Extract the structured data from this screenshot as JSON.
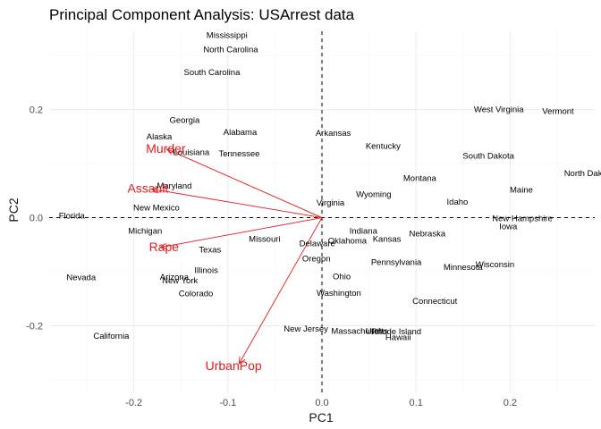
{
  "chart_data": {
    "type": "scatter",
    "title": "Principal Component Analysis: USArrest data",
    "xlabel": "PC1",
    "ylabel": "PC2",
    "xlim": [
      -0.29,
      0.29
    ],
    "ylim": [
      -0.325,
      0.345
    ],
    "xticks": [
      -0.2,
      -0.1,
      0.0,
      0.1,
      0.2
    ],
    "yticks": [
      -0.2,
      0.0,
      0.2
    ],
    "xtick_labels": [
      "-0.2",
      "-0.1",
      "0.0",
      "0.1",
      "0.2"
    ],
    "ytick_labels": [
      "-0.2",
      "0.0",
      "0.2"
    ],
    "grid": true,
    "reference_lines": {
      "x": 0,
      "y": 0,
      "style": "dashed"
    },
    "states": [
      {
        "name": "Mississippi",
        "x": -0.101,
        "y": 0.338
      },
      {
        "name": "North Carolina",
        "x": -0.097,
        "y": 0.312
      },
      {
        "name": "South Carolina",
        "x": -0.117,
        "y": 0.27
      },
      {
        "name": "Georgia",
        "x": -0.146,
        "y": 0.181
      },
      {
        "name": "Alaska",
        "x": -0.173,
        "y": 0.151
      },
      {
        "name": "Alabama",
        "x": -0.087,
        "y": 0.159
      },
      {
        "name": "Arkansas",
        "x": 0.012,
        "y": 0.157
      },
      {
        "name": "Kentucky",
        "x": 0.065,
        "y": 0.133
      },
      {
        "name": "West Virginia",
        "x": 0.188,
        "y": 0.201
      },
      {
        "name": "Vermont",
        "x": 0.251,
        "y": 0.198
      },
      {
        "name": "South Dakota",
        "x": 0.177,
        "y": 0.115
      },
      {
        "name": "North Dakota",
        "x": 0.284,
        "y": 0.083
      },
      {
        "name": "Louisiana",
        "x": -0.139,
        "y": 0.122
      },
      {
        "name": "Tennessee",
        "x": -0.088,
        "y": 0.119
      },
      {
        "name": "Maryland",
        "x": -0.157,
        "y": 0.06
      },
      {
        "name": "Montana",
        "x": 0.104,
        "y": 0.074
      },
      {
        "name": "Wyoming",
        "x": 0.055,
        "y": 0.044
      },
      {
        "name": "Maine",
        "x": 0.212,
        "y": 0.052
      },
      {
        "name": "Virginia",
        "x": 0.009,
        "y": 0.028
      },
      {
        "name": "Idaho",
        "x": 0.144,
        "y": 0.03
      },
      {
        "name": "Florida",
        "x": -0.266,
        "y": 0.004
      },
      {
        "name": "New Mexico",
        "x": -0.176,
        "y": 0.019
      },
      {
        "name": "New Hampshire",
        "x": 0.213,
        "y": -0.001
      },
      {
        "name": "Iowa",
        "x": 0.198,
        "y": -0.016
      },
      {
        "name": "Michigan",
        "x": -0.188,
        "y": -0.024
      },
      {
        "name": "Indiana",
        "x": 0.044,
        "y": -0.024
      },
      {
        "name": "Nebraska",
        "x": 0.112,
        "y": -0.029
      },
      {
        "name": "Missouri",
        "x": -0.061,
        "y": -0.039
      },
      {
        "name": "Oklahoma",
        "x": 0.027,
        "y": -0.042
      },
      {
        "name": "Kansas",
        "x": 0.069,
        "y": -0.039
      },
      {
        "name": "Delaware",
        "x": -0.005,
        "y": -0.047
      },
      {
        "name": "Texas",
        "x": -0.119,
        "y": -0.059
      },
      {
        "name": "Oregon",
        "x": -0.006,
        "y": -0.075
      },
      {
        "name": "Pennsylvania",
        "x": 0.079,
        "y": -0.082
      },
      {
        "name": "Wisconsin",
        "x": 0.184,
        "y": -0.086
      },
      {
        "name": "Minnesota",
        "x": 0.15,
        "y": -0.091
      },
      {
        "name": "Illinois",
        "x": -0.123,
        "y": -0.097
      },
      {
        "name": "Ohio",
        "x": 0.021,
        "y": -0.108
      },
      {
        "name": "Nevada",
        "x": -0.256,
        "y": -0.11
      },
      {
        "name": "Arizona",
        "x": -0.157,
        "y": -0.109
      },
      {
        "name": "New York",
        "x": -0.151,
        "y": -0.116
      },
      {
        "name": "Colorado",
        "x": -0.134,
        "y": -0.14
      },
      {
        "name": "Washington",
        "x": 0.018,
        "y": -0.139
      },
      {
        "name": "Connecticut",
        "x": 0.12,
        "y": -0.154
      },
      {
        "name": "New Jersey",
        "x": -0.017,
        "y": -0.205
      },
      {
        "name": "Massachusetts",
        "x": 0.04,
        "y": -0.209
      },
      {
        "name": "Utah",
        "x": 0.056,
        "y": -0.209
      },
      {
        "name": "Rhode Island",
        "x": 0.079,
        "y": -0.21
      },
      {
        "name": "Hawaii",
        "x": 0.081,
        "y": -0.221
      },
      {
        "name": "California",
        "x": -0.224,
        "y": -0.218
      }
    ],
    "loadings": [
      {
        "name": "Murder",
        "x": -0.165,
        "y": 0.127,
        "label_x": -0.166,
        "label_y": 0.128
      },
      {
        "name": "Assault",
        "x": -0.181,
        "y": 0.053,
        "label_x": -0.185,
        "label_y": 0.055
      },
      {
        "name": "Rape",
        "x": -0.172,
        "y": -0.055,
        "label_x": -0.168,
        "label_y": -0.054
      },
      {
        "name": "UrbanPop",
        "x": -0.088,
        "y": -0.27,
        "label_x": -0.094,
        "label_y": -0.274
      }
    ],
    "colors": {
      "state_text": "#000000",
      "loading": "#e41a1c",
      "grid": "#ebebeb",
      "reference": "#000000"
    }
  }
}
